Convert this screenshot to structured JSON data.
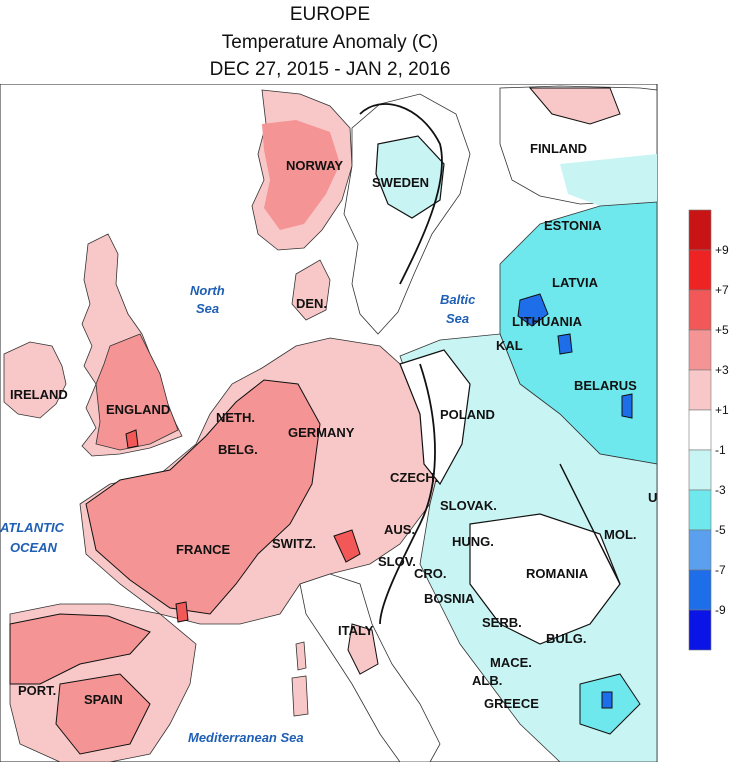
{
  "title": {
    "line1": "EUROPE",
    "line2": "Temperature Anomaly (C)",
    "line3": "DEC 27, 2015 - JAN 2, 2016"
  },
  "countries": {
    "norway": "NORWAY",
    "sweden": "SWEDEN",
    "finland": "FINLAND",
    "estonia": "ESTONIA",
    "latvia": "LATVIA",
    "lithuania": "LITHUANIA",
    "kal": "KAL",
    "belarus": "BELARUS",
    "ireland": "IRELAND",
    "england": "ENGLAND",
    "denmark": "DEN.",
    "netherlands": "NETH.",
    "belgium": "BELG.",
    "germany": "GERMANY",
    "poland": "POLAND",
    "czech": "CZECH.",
    "slovakia": "SLOVAK.",
    "austria": "AUS.",
    "switzerland": "SWITZ.",
    "slovenia": "SLOV.",
    "croatia": "CRO.",
    "hungary": "HUNG.",
    "moldova": "MOL.",
    "romania": "ROMANIA",
    "france": "FRANCE",
    "bosnia": "BOSNIA",
    "serbia": "SERB.",
    "bulgaria": "BULG.",
    "macedonia": "MACE.",
    "albania": "ALB.",
    "greece": "GREECE",
    "italy": "ITALY",
    "portugal": "PORT.",
    "spain": "SPAIN",
    "ukraine": "U"
  },
  "seas": {
    "north_sea_1": "North",
    "north_sea_2": "Sea",
    "baltic_1": "Baltic",
    "baltic_2": "Sea",
    "atlantic_1": "ATLANTIC",
    "atlantic_2": "OCEAN",
    "mediterranean": "Mediterranean Sea"
  },
  "legend": {
    "ticks": [
      "+9",
      "+7",
      "+5",
      "+3",
      "+1",
      "-1",
      "-3",
      "-5",
      "-7",
      "-9"
    ],
    "bins": [
      {
        "range": "> +9",
        "color": "#c81414"
      },
      {
        "range": "+7 to +9",
        "color": "#ee2424"
      },
      {
        "range": "+5 to +7",
        "color": "#f25858"
      },
      {
        "range": "+3 to +5",
        "color": "#f49494"
      },
      {
        "range": "+1 to +3",
        "color": "#f8c8c8"
      },
      {
        "range": "-1 to +1",
        "color": "#ffffff"
      },
      {
        "range": "-3 to -1",
        "color": "#c8f4f4"
      },
      {
        "range": "-5 to -3",
        "color": "#6ee8ec"
      },
      {
        "range": "-7 to -5",
        "color": "#5aa0ee"
      },
      {
        "range": "-9 to -7",
        "color": "#1e6eea"
      },
      {
        "range": "< -9",
        "color": "#0a14e6"
      }
    ]
  },
  "colors": {
    "warm_light": "#f8c8c8",
    "warm_mid": "#f49494",
    "warm_strong": "#f25858",
    "neutral": "#ffffff",
    "cold_light": "#c8f4f4",
    "cold_mid": "#6ee8ec",
    "cold_strong": "#1e6eea",
    "sea_text": "#1f5fb4"
  }
}
